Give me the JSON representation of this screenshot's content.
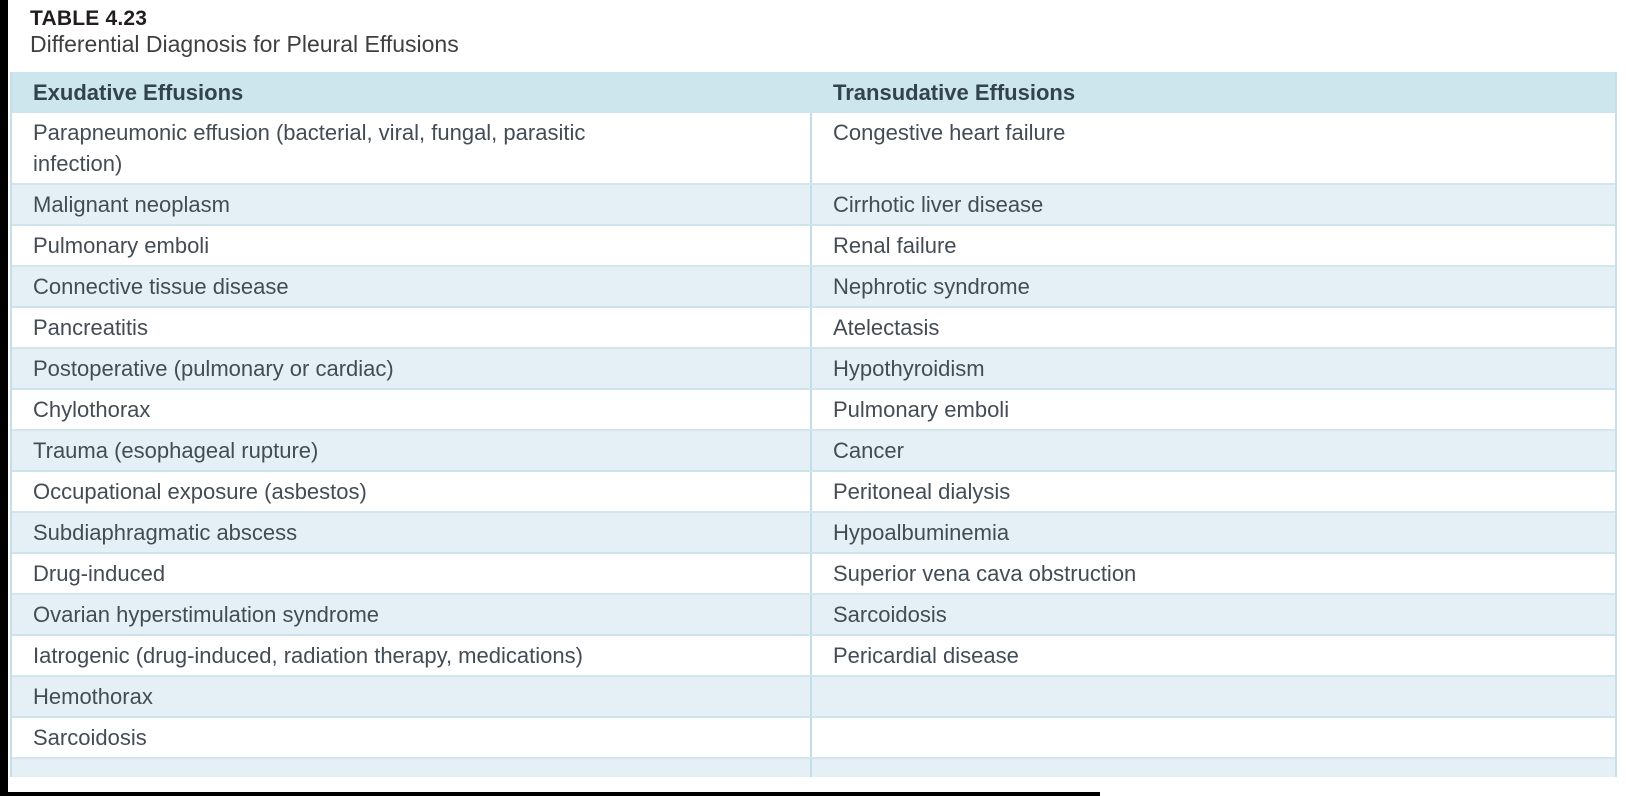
{
  "page": {
    "label": "TABLE 4.23",
    "caption": "Differential Diagnosis for Pleural Effusions"
  },
  "table": {
    "columns": [
      {
        "label": "Exudative Effusions"
      },
      {
        "label": "Transudative Effusions"
      }
    ],
    "rows": [
      {
        "exudative": "Parapneumonic effusion (bacterial, viral, fungal, parasitic infection)",
        "transudative": "Congestive heart failure"
      },
      {
        "exudative": "Malignant neoplasm",
        "transudative": "Cirrhotic liver disease"
      },
      {
        "exudative": "Pulmonary emboli",
        "transudative": "Renal failure"
      },
      {
        "exudative": "Connective tissue disease",
        "transudative": "Nephrotic syndrome"
      },
      {
        "exudative": "Pancreatitis",
        "transudative": "Atelectasis"
      },
      {
        "exudative": "Postoperative (pulmonary or cardiac)",
        "transudative": "Hypothyroidism"
      },
      {
        "exudative": "Chylothorax",
        "transudative": "Pulmonary emboli"
      },
      {
        "exudative": "Trauma (esophageal rupture)",
        "transudative": "Cancer"
      },
      {
        "exudative": "Occupational exposure (asbestos)",
        "transudative": "Peritoneal dialysis"
      },
      {
        "exudative": "Subdiaphragmatic abscess",
        "transudative": "Hypoalbuminemia"
      },
      {
        "exudative": "Drug-induced",
        "transudative": "Superior vena cava obstruction"
      },
      {
        "exudative": "Ovarian hyperstimulation syndrome",
        "transudative": "Sarcoidosis"
      },
      {
        "exudative": "Iatrogenic (drug-induced, radiation therapy, medications)",
        "transudative": "Pericardial disease"
      },
      {
        "exudative": "Hemothorax",
        "transudative": ""
      },
      {
        "exudative": "Sarcoidosis",
        "transudative": ""
      }
    ]
  },
  "colors": {
    "header_bg": "#cde5ed",
    "row_alt_bg": "#e4f0f6",
    "row_bg": "#ffffff",
    "divider": "#c3dde8",
    "row_separator": "#d3e6ee",
    "body_text": "#434c55",
    "header_text": "#33434e",
    "title_text": "#211d1e",
    "caption_text": "#3f3f3f",
    "edge_black": "#000000"
  }
}
